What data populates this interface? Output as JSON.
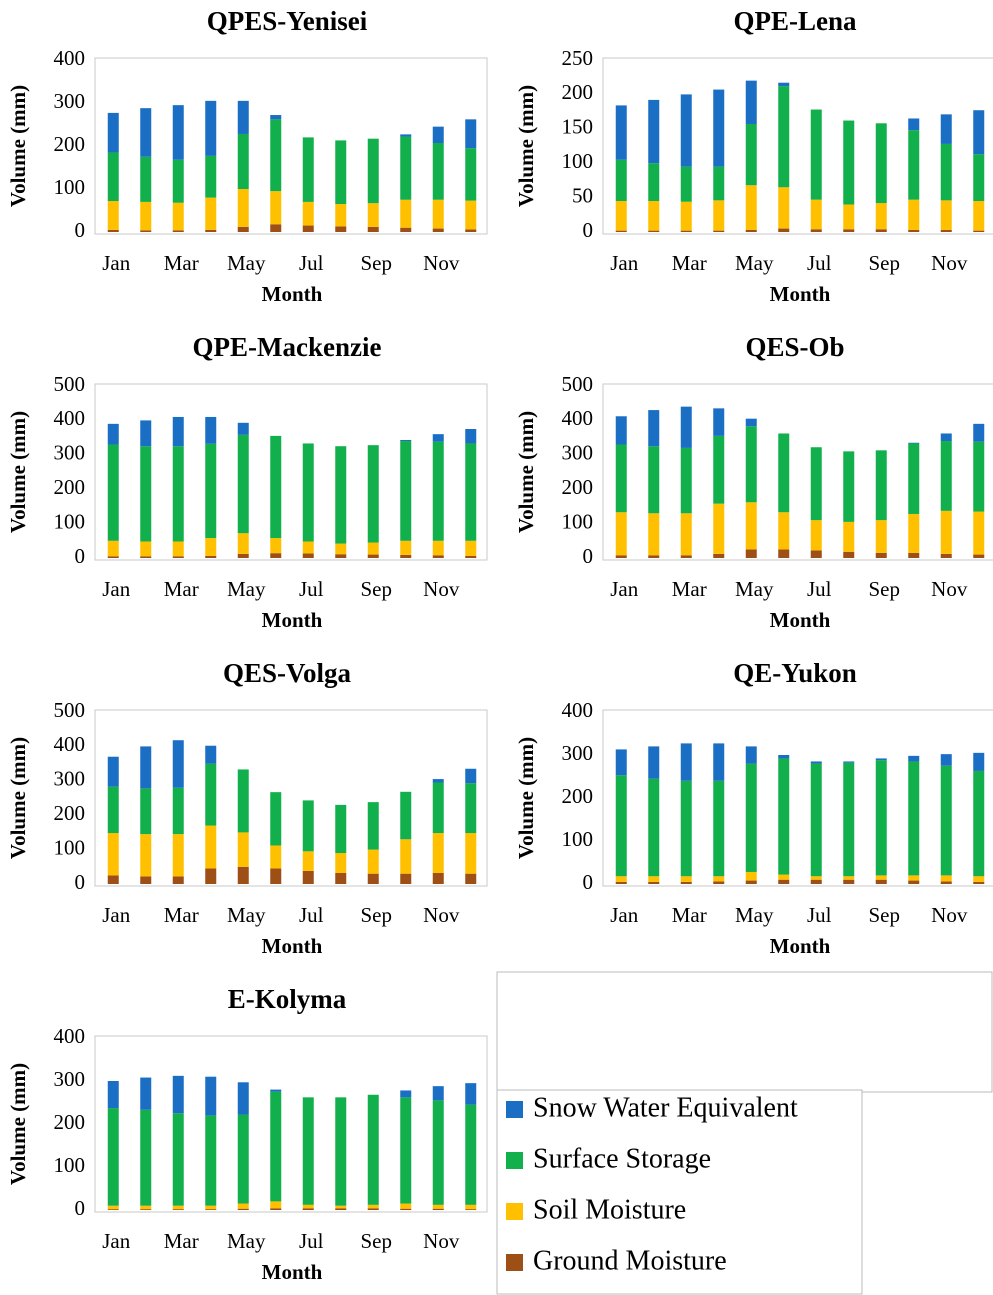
{
  "legend": [
    {
      "name": "Snow Water Equivalent",
      "color": "#1a6fc4"
    },
    {
      "name": "Surface Storage",
      "color": "#12b04c"
    },
    {
      "name": "Soil Moisture",
      "color": "#ffc000"
    },
    {
      "name": "Ground Moisture",
      "color": "#9e4f16"
    }
  ],
  "chart_data": [
    {
      "type": "bar",
      "title": "QPES-Yenisei",
      "x_label": "Month",
      "y_label": "Volume (mm)",
      "categories": [
        "Jan",
        null,
        "Mar",
        null,
        "May",
        null,
        "Jul",
        null,
        "Sep",
        null,
        "Nov",
        null
      ],
      "ylim": [
        0,
        400
      ],
      "yticks": [
        0,
        100,
        200,
        300,
        400
      ],
      "series": [
        {
          "values": [
            92,
            113,
            127,
            128,
            77,
            10,
            0,
            0,
            0,
            5,
            38,
            67
          ]
        },
        {
          "values": [
            113,
            105,
            100,
            97,
            128,
            167,
            150,
            148,
            150,
            147,
            132,
            122
          ]
        },
        {
          "values": [
            67,
            66,
            64,
            75,
            88,
            77,
            55,
            52,
            55,
            65,
            67,
            67
          ]
        },
        {
          "values": [
            5,
            4,
            4,
            5,
            12,
            18,
            15,
            13,
            12,
            10,
            8,
            6
          ]
        }
      ]
    },
    {
      "type": "bar",
      "title": "QPE-Lena",
      "x_label": "Month",
      "y_label": "Volume (mm)",
      "categories": [
        "Jan",
        null,
        "Mar",
        null,
        "May",
        null,
        "Jul",
        null,
        "Sep",
        null,
        "Nov",
        null
      ],
      "ylim": [
        0,
        250
      ],
      "yticks": [
        0,
        50,
        100,
        150,
        200,
        250
      ],
      "series": [
        {
          "values": [
            79,
            92,
            105,
            112,
            63,
            5,
            0,
            0,
            0,
            17,
            43,
            64
          ]
        },
        {
          "values": [
            60,
            55,
            51,
            49,
            89,
            147,
            131,
            122,
            116,
            101,
            82,
            68
          ]
        },
        {
          "values": [
            43,
            43,
            42,
            44,
            65,
            60,
            43,
            36,
            38,
            44,
            43,
            43
          ]
        },
        {
          "values": [
            2,
            2,
            2,
            2,
            3,
            5,
            4,
            4,
            4,
            3,
            3,
            2
          ]
        }
      ]
    },
    {
      "type": "bar",
      "title": "QPE-Mackenzie",
      "x_label": "Month",
      "y_label": "Volume (mm)",
      "categories": [
        "Jan",
        null,
        "Mar",
        null,
        "May",
        null,
        "Jul",
        null,
        "Sep",
        null,
        "Nov",
        null
      ],
      "ylim": [
        0,
        500
      ],
      "yticks": [
        0,
        100,
        200,
        300,
        400,
        500
      ],
      "series": [
        {
          "values": [
            60,
            75,
            85,
            78,
            35,
            0,
            0,
            0,
            0,
            3,
            22,
            42
          ]
        },
        {
          "values": [
            280,
            277,
            277,
            274,
            286,
            297,
            285,
            283,
            283,
            290,
            288,
            283
          ]
        },
        {
          "values": [
            45,
            43,
            43,
            52,
            60,
            44,
            35,
            31,
            35,
            41,
            42,
            44
          ]
        },
        {
          "values": [
            5,
            5,
            5,
            6,
            12,
            14,
            13,
            11,
            10,
            9,
            8,
            6
          ]
        }
      ]
    },
    {
      "type": "bar",
      "title": "QES-Ob",
      "x_label": "Month",
      "y_label": "Volume (mm)",
      "categories": [
        "Jan",
        null,
        "Mar",
        null,
        "May",
        null,
        "Jul",
        null,
        "Sep",
        null,
        "Nov",
        null
      ],
      "ylim": [
        0,
        500
      ],
      "yticks": [
        0,
        100,
        200,
        300,
        400,
        500
      ],
      "series": [
        {
          "values": [
            82,
            105,
            120,
            80,
            22,
            0,
            0,
            0,
            0,
            2,
            22,
            52
          ]
        },
        {
          "values": [
            197,
            195,
            190,
            197,
            221,
            229,
            212,
            205,
            203,
            205,
            203,
            203
          ]
        },
        {
          "values": [
            125,
            122,
            122,
            146,
            137,
            108,
            88,
            87,
            95,
            113,
            125,
            125
          ]
        },
        {
          "values": [
            8,
            8,
            8,
            12,
            25,
            25,
            22,
            18,
            15,
            15,
            12,
            10
          ]
        }
      ]
    },
    {
      "type": "bar",
      "title": "QES-Volga",
      "x_label": "Month",
      "y_label": "Volume (mm)",
      "categories": [
        "Jan",
        null,
        "Mar",
        null,
        "May",
        null,
        "Jul",
        null,
        "Sep",
        null,
        "Nov",
        null
      ],
      "ylim": [
        0,
        500
      ],
      "yticks": [
        0,
        100,
        200,
        300,
        400,
        500
      ],
      "series": [
        {
          "values": [
            87,
            122,
            138,
            52,
            0,
            0,
            0,
            0,
            0,
            0,
            10,
            42
          ]
        },
        {
          "values": [
            135,
            133,
            135,
            180,
            183,
            155,
            148,
            140,
            138,
            138,
            147,
            145
          ]
        },
        {
          "values": [
            123,
            123,
            123,
            125,
            100,
            67,
            57,
            58,
            70,
            100,
            116,
            118
          ]
        },
        {
          "values": [
            25,
            22,
            22,
            45,
            50,
            45,
            38,
            32,
            30,
            30,
            32,
            30
          ]
        }
      ]
    },
    {
      "type": "bar",
      "title": "QE-Yukon",
      "x_label": "Month",
      "y_label": "Volume (mm)",
      "categories": [
        "Jan",
        null,
        "Mar",
        null,
        "May",
        null,
        "Jul",
        null,
        "Sep",
        null,
        "Nov",
        null
      ],
      "ylim": [
        0,
        400
      ],
      "yticks": [
        0,
        100,
        200,
        300,
        400
      ],
      "series": [
        {
          "values": [
            60,
            75,
            87,
            87,
            40,
            8,
            5,
            3,
            4,
            13,
            27,
            42
          ]
        },
        {
          "values": [
            235,
            227,
            222,
            222,
            252,
            270,
            262,
            264,
            268,
            265,
            255,
            245
          ]
        },
        {
          "values": [
            13,
            13,
            13,
            12,
            20,
            12,
            8,
            8,
            10,
            12,
            14,
            13
          ]
        },
        {
          "values": [
            5,
            5,
            5,
            6,
            8,
            10,
            10,
            10,
            10,
            8,
            6,
            5
          ]
        }
      ]
    },
    {
      "type": "bar",
      "title": "E-Kolyma",
      "x_label": "Month",
      "y_label": "Volume (mm)",
      "categories": [
        "Jan",
        null,
        "Mar",
        null,
        "May",
        null,
        "Jul",
        null,
        "Sep",
        null,
        "Nov",
        null
      ],
      "ylim": [
        0,
        400
      ],
      "yticks": [
        0,
        100,
        200,
        300,
        400
      ],
      "series": [
        {
          "values": [
            63,
            75,
            87,
            90,
            75,
            5,
            0,
            0,
            0,
            16,
            33,
            50
          ]
        },
        {
          "values": [
            227,
            223,
            215,
            210,
            207,
            255,
            250,
            252,
            256,
            247,
            243,
            233
          ]
        },
        {
          "values": [
            8,
            8,
            8,
            8,
            12,
            16,
            8,
            6,
            8,
            12,
            9,
            10
          ]
        },
        {
          "values": [
            2,
            2,
            2,
            2,
            3,
            4,
            4,
            4,
            4,
            3,
            3,
            2
          ]
        }
      ]
    }
  ]
}
